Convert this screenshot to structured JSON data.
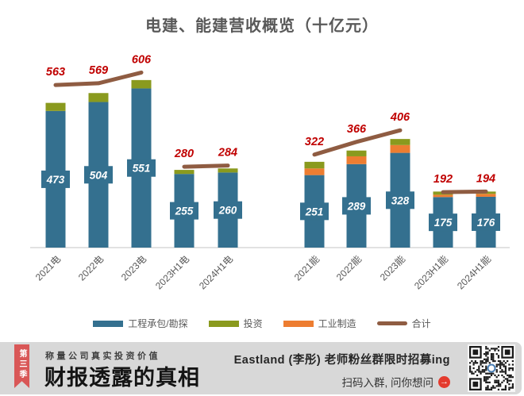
{
  "title": "电建、能建营收概览（十亿元）",
  "colors": {
    "engineering": "#34708f",
    "investment": "#8a9a1e",
    "industry": "#ed7d31",
    "total_line": "#8f5c42",
    "total_label": "#c00000",
    "axis_text": "#595959",
    "axis_line": "#d9d9d9",
    "footer_bg": "#d8d8d8",
    "ribbon_red": "#d95757",
    "arrow_red": "#e43b2e"
  },
  "chart_data": {
    "type": "bar",
    "stacked": true,
    "title": "电建、能建营收概览（十亿元）",
    "unit": "十亿元",
    "grid": false,
    "legend_position": "bottom",
    "legend": [
      "工程承包/勘探",
      "投资",
      "工业制造",
      "合计"
    ],
    "ylim": [
      0,
      650
    ],
    "groups": [
      {
        "name": "电建",
        "categories": [
          "2021电",
          "2022电",
          "2023电",
          "2023H1电",
          "2024H1电"
        ],
        "series": [
          {
            "name": "工程承包/勘探",
            "values": [
              473,
              504,
              551,
              255,
              260
            ]
          },
          {
            "name": "工业制造",
            "values": [
              0,
              0,
              0,
              0,
              0
            ]
          },
          {
            "name": "投资",
            "values": [
              28,
              31,
              29,
              14,
              14
            ]
          }
        ],
        "bar_labels": [
          473,
          504,
          551,
          255,
          260
        ],
        "line": {
          "name": "合计",
          "values": [
            563,
            569,
            606,
            280,
            284
          ],
          "segments": [
            [
              0,
              1,
              2
            ],
            [
              3,
              4
            ]
          ]
        }
      },
      {
        "name": "能建",
        "categories": [
          "2021能",
          "2022能",
          "2023能",
          "2023H1能",
          "2024H1能"
        ],
        "series": [
          {
            "name": "工程承包/勘探",
            "values": [
              251,
              289,
              328,
              175,
              176
            ]
          },
          {
            "name": "工业制造",
            "values": [
              23,
              27,
              27,
              8,
              10
            ]
          },
          {
            "name": "投资",
            "values": [
              23,
              20,
              21,
              11,
              8
            ]
          }
        ],
        "bar_labels": [
          251,
          289,
          328,
          175,
          176
        ],
        "line": {
          "name": "合计",
          "values": [
            322,
            366,
            406,
            192,
            194
          ],
          "segments": [
            [
              0,
              1,
              2
            ],
            [
              3,
              4
            ]
          ]
        }
      }
    ]
  },
  "footer": {
    "ribbon": "第三季",
    "slogan": "称量公司真实投资价值",
    "brand": "财报透露的真相",
    "promo_line1": "Eastland (李彤) 老师粉丝群限时招募ing",
    "promo_line2": "扫码入群, 问你想问",
    "arrow_icon": "→"
  }
}
